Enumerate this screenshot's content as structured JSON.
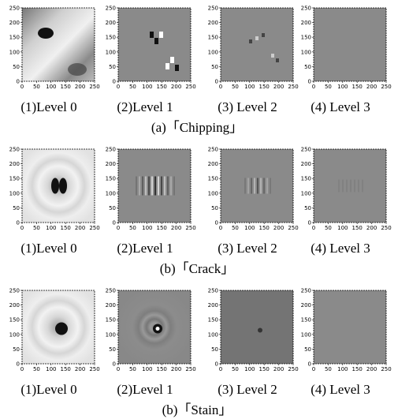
{
  "axis_ticks": [
    "0",
    "50",
    "100",
    "150",
    "200",
    "250"
  ],
  "groups": [
    {
      "caption": "(a)「Chipping」",
      "panels": [
        {
          "label": "(1)Level 0"
        },
        {
          "label": "(2)Level 1"
        },
        {
          "label": "(3) Level 2"
        },
        {
          "label": "(4) Level 3"
        }
      ]
    },
    {
      "caption": "(b)「Crack」",
      "panels": [
        {
          "label": "(1)Level 0"
        },
        {
          "label": "(2)Level 1"
        },
        {
          "label": "(3) Level 2"
        },
        {
          "label": "(4) Level 3"
        }
      ]
    },
    {
      "caption": "(b)「Stain」",
      "panels": [
        {
          "label": "(1)Level 0"
        },
        {
          "label": "(2)Level 1"
        },
        {
          "label": "(3) Level 2"
        },
        {
          "label": "(4) Level 3"
        }
      ]
    }
  ]
}
